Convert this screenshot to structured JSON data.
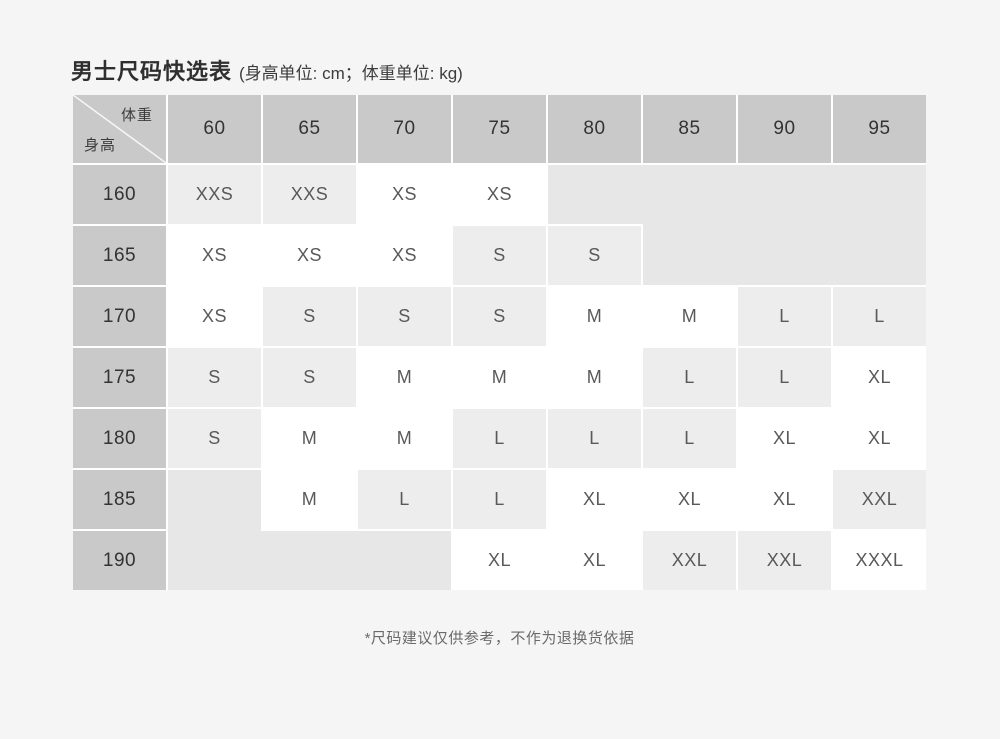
{
  "page_background": "#f5f5f5",
  "title": {
    "main": "男士尺码快选表",
    "units": "(身高单位: cm；体重单位: kg)"
  },
  "footnote": "*尺码建议仅供参考，不作为退换货依据",
  "table": {
    "corner": {
      "weight_label": "体重",
      "height_label": "身高"
    },
    "weight_columns": [
      "60",
      "65",
      "70",
      "75",
      "80",
      "85",
      "90",
      "95"
    ],
    "height_rows": [
      "160",
      "165",
      "170",
      "175",
      "180",
      "185",
      "190"
    ],
    "cells": [
      [
        {
          "v": "XXS",
          "bg": "gray"
        },
        {
          "v": "XXS",
          "bg": "gray"
        },
        {
          "v": "XS",
          "bg": "white"
        },
        {
          "v": "XS",
          "bg": "white"
        },
        {
          "v": "",
          "bg": "empty"
        },
        {
          "v": "",
          "bg": "empty"
        },
        {
          "v": "",
          "bg": "empty"
        },
        {
          "v": "",
          "bg": "empty"
        }
      ],
      [
        {
          "v": "XS",
          "bg": "white"
        },
        {
          "v": "XS",
          "bg": "white"
        },
        {
          "v": "XS",
          "bg": "white"
        },
        {
          "v": "S",
          "bg": "gray"
        },
        {
          "v": "S",
          "bg": "gray"
        },
        {
          "v": "",
          "bg": "empty"
        },
        {
          "v": "",
          "bg": "empty"
        },
        {
          "v": "",
          "bg": "empty"
        }
      ],
      [
        {
          "v": "XS",
          "bg": "white"
        },
        {
          "v": "S",
          "bg": "gray"
        },
        {
          "v": "S",
          "bg": "gray"
        },
        {
          "v": "S",
          "bg": "gray"
        },
        {
          "v": "M",
          "bg": "white"
        },
        {
          "v": "M",
          "bg": "white"
        },
        {
          "v": "L",
          "bg": "gray"
        },
        {
          "v": "L",
          "bg": "gray"
        }
      ],
      [
        {
          "v": "S",
          "bg": "gray"
        },
        {
          "v": "S",
          "bg": "gray"
        },
        {
          "v": "M",
          "bg": "white"
        },
        {
          "v": "M",
          "bg": "white"
        },
        {
          "v": "M",
          "bg": "white"
        },
        {
          "v": "L",
          "bg": "gray"
        },
        {
          "v": "L",
          "bg": "gray"
        },
        {
          "v": "XL",
          "bg": "white"
        }
      ],
      [
        {
          "v": "S",
          "bg": "gray"
        },
        {
          "v": "M",
          "bg": "white"
        },
        {
          "v": "M",
          "bg": "white"
        },
        {
          "v": "L",
          "bg": "gray"
        },
        {
          "v": "L",
          "bg": "gray"
        },
        {
          "v": "L",
          "bg": "gray"
        },
        {
          "v": "XL",
          "bg": "white"
        },
        {
          "v": "XL",
          "bg": "white"
        }
      ],
      [
        {
          "v": "",
          "bg": "empty"
        },
        {
          "v": "M",
          "bg": "white"
        },
        {
          "v": "L",
          "bg": "gray"
        },
        {
          "v": "L",
          "bg": "gray"
        },
        {
          "v": "XL",
          "bg": "white"
        },
        {
          "v": "XL",
          "bg": "white"
        },
        {
          "v": "XL",
          "bg": "white"
        },
        {
          "v": "XXL",
          "bg": "gray"
        }
      ],
      [
        {
          "v": "",
          "bg": "empty"
        },
        {
          "v": "",
          "bg": "empty"
        },
        {
          "v": "",
          "bg": "empty"
        },
        {
          "v": "XL",
          "bg": "white"
        },
        {
          "v": "XL",
          "bg": "white"
        },
        {
          "v": "XXL",
          "bg": "gray"
        },
        {
          "v": "XXL",
          "bg": "gray"
        },
        {
          "v": "XXXL",
          "bg": "white"
        }
      ]
    ],
    "colors": {
      "header_bg": "#c9c9c9",
      "gray_bg": "#ededed",
      "white_bg": "#ffffff",
      "empty_bg": "#e7e7e7",
      "gap": "#ffffff",
      "header_text": "#333333",
      "cell_text": "#595959",
      "diagonal_line": "rgba(255,255,255,0.85)"
    }
  },
  "chart_data": {
    "type": "table",
    "title": "男士尺码快选表 (身高单位: cm；体重单位: kg)",
    "col_axis_label": "体重",
    "row_axis_label": "身高",
    "columns": [
      60,
      65,
      70,
      75,
      80,
      85,
      90,
      95
    ],
    "rows": [
      160,
      165,
      170,
      175,
      180,
      185,
      190
    ],
    "values": [
      [
        "XXS",
        "XXS",
        "XS",
        "XS",
        "",
        "",
        "",
        ""
      ],
      [
        "XS",
        "XS",
        "XS",
        "S",
        "S",
        "",
        "",
        ""
      ],
      [
        "XS",
        "S",
        "S",
        "S",
        "M",
        "M",
        "L",
        "L"
      ],
      [
        "S",
        "S",
        "M",
        "M",
        "M",
        "L",
        "L",
        "XL"
      ],
      [
        "S",
        "M",
        "M",
        "L",
        "L",
        "L",
        "XL",
        "XL"
      ],
      [
        "",
        "M",
        "L",
        "L",
        "XL",
        "XL",
        "XL",
        "XXL"
      ],
      [
        "",
        "",
        "",
        "XL",
        "XL",
        "XXL",
        "XXL",
        "XXXL"
      ]
    ],
    "footnote": "*尺码建议仅供参考，不作为退换货依据"
  }
}
